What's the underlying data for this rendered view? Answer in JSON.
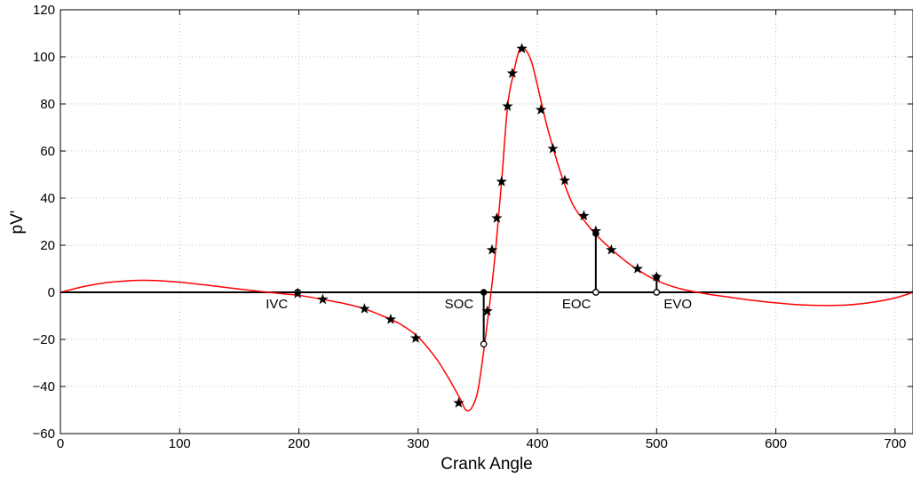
{
  "chart_data": {
    "type": "line",
    "title": "",
    "xlabel": "Crank Angle",
    "ylabel": "pV'",
    "xlim": [
      0,
      715
    ],
    "ylim": [
      -60,
      120
    ],
    "xticks": [
      0,
      100,
      200,
      300,
      400,
      500,
      600,
      700
    ],
    "yticks": [
      -60,
      -40,
      -20,
      0,
      20,
      40,
      60,
      80,
      100,
      120
    ],
    "grid": true,
    "legend": "none",
    "colors": {
      "curve": "#ff0000",
      "markers": "#000000",
      "baseline": "#000000",
      "grid": "#bfbfbf"
    },
    "curve": {
      "x": [
        0,
        20,
        40,
        60,
        70,
        80,
        100,
        120,
        140,
        160,
        180,
        200,
        220,
        240,
        255,
        270,
        285,
        300,
        315,
        325,
        335,
        340,
        345,
        350,
        355,
        360,
        365,
        370,
        375,
        380,
        385,
        390,
        395,
        400,
        405,
        410,
        420,
        430,
        440,
        450,
        465,
        480,
        500,
        520,
        540,
        560,
        580,
        600,
        620,
        640,
        660,
        680,
        700,
        715
      ],
      "y": [
        0,
        2.5,
        4.2,
        5.0,
        5.1,
        5.0,
        4.3,
        3.2,
        2.0,
        0.8,
        -0.3,
        -1.3,
        -3.0,
        -5.0,
        -7.0,
        -10.0,
        -13.5,
        -19.0,
        -28.0,
        -36.0,
        -45.0,
        -50.0,
        -49.0,
        -42.0,
        -25.0,
        -5.0,
        18.0,
        47.0,
        79.0,
        93.0,
        103.0,
        103.0,
        98.0,
        88.0,
        77.0,
        67.0,
        50.0,
        37.0,
        30.0,
        24.0,
        17.0,
        11.0,
        5.0,
        1.5,
        -0.5,
        -2.0,
        -3.4,
        -4.5,
        -5.3,
        -5.6,
        -5.4,
        -4.3,
        -2.4,
        0
      ]
    },
    "star_markers": {
      "x": [
        199,
        220,
        255,
        277,
        298,
        334,
        358,
        362,
        366,
        370,
        375,
        379,
        387,
        403,
        413,
        423,
        439,
        449,
        462,
        484,
        500
      ],
      "y": [
        -0.5,
        -3.0,
        -7.0,
        -11.5,
        -19.5,
        -47.0,
        -8.0,
        18.0,
        31.5,
        47.0,
        79.0,
        93.0,
        103.5,
        77.5,
        61.0,
        47.5,
        32.5,
        26.0,
        18.0,
        10.0,
        6.5
      ]
    },
    "baseline_y": 0,
    "events": [
      {
        "label": "IVC",
        "x": 199,
        "y_top": 0,
        "y_bottom": 0
      },
      {
        "label": "SOC",
        "x": 355,
        "y_top": 0,
        "y_bottom": -22
      },
      {
        "label": "EOC",
        "x": 449,
        "y_top": 25,
        "y_bottom": 0
      },
      {
        "label": "EVO",
        "x": 500,
        "y_top": 6.5,
        "y_bottom": 0
      }
    ]
  }
}
